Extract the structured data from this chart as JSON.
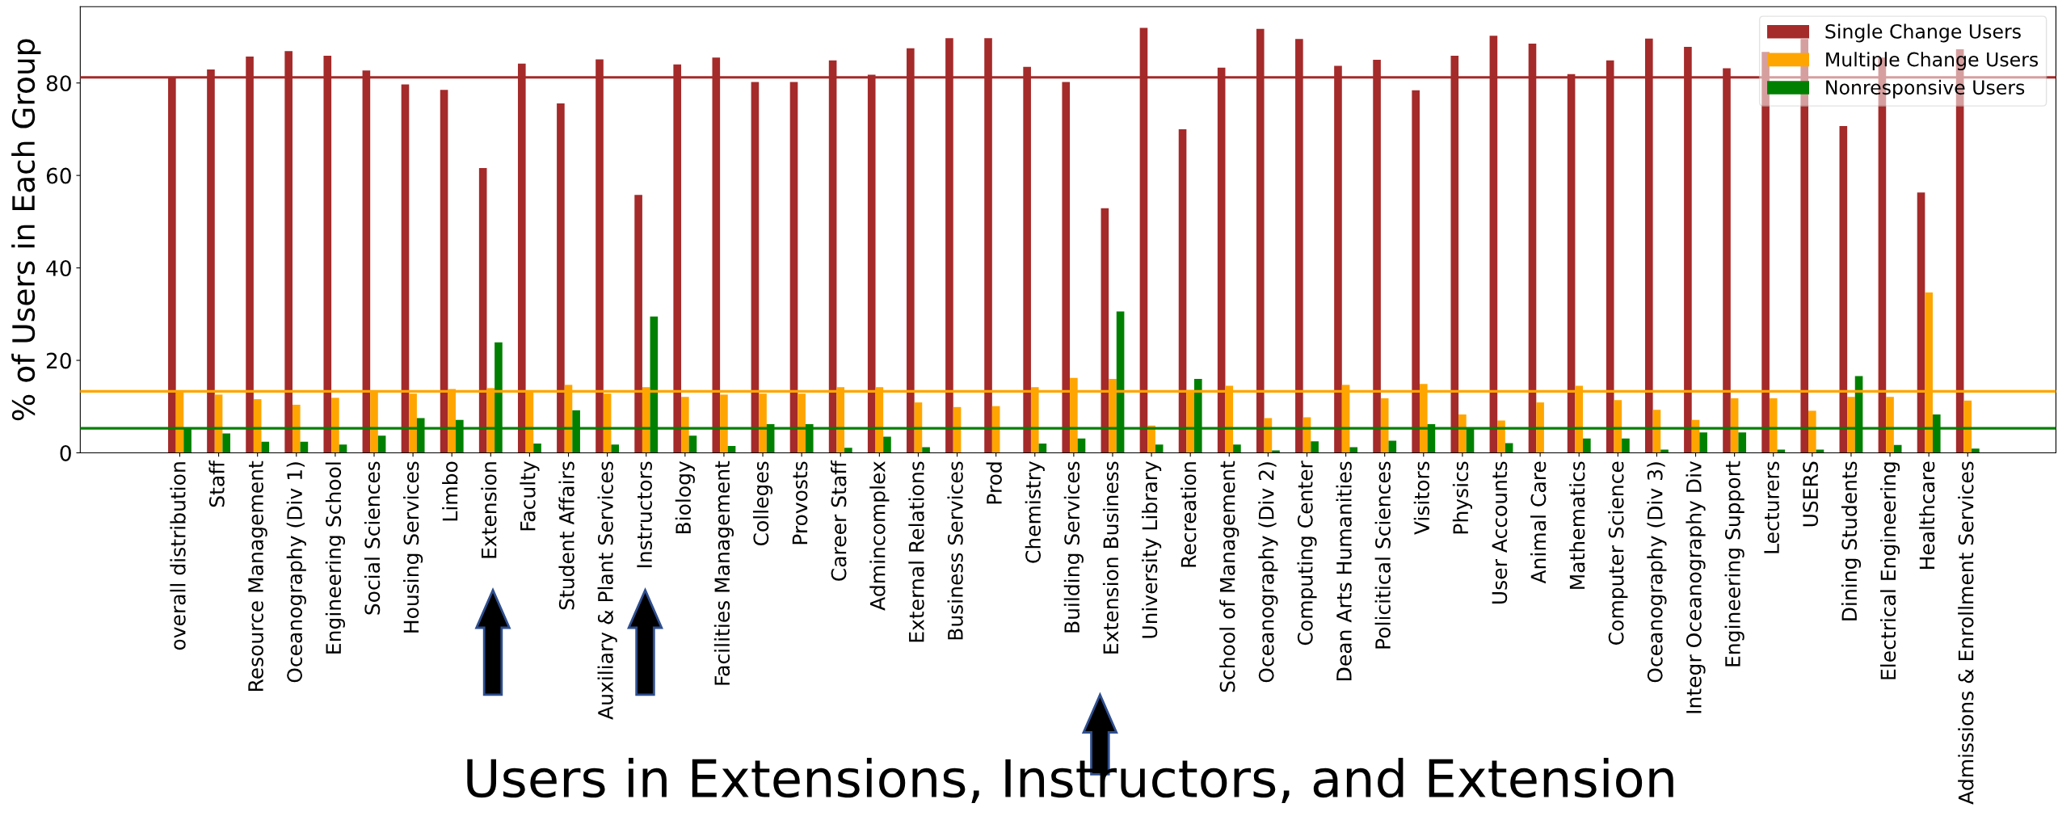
{
  "chart_data": {
    "type": "bar",
    "ylabel": "% of Users in Each Group",
    "categories": [
      "overall distribution",
      "Staff",
      "Resource Management",
      "Oceanography (Div 1)",
      "Engineering School",
      "Social Sciences",
      "Housing Services",
      "Limbo",
      "Extension",
      "Faculty",
      "Student Affairs",
      "Auxiliary & Plant Services",
      "Instructors",
      "Biology",
      "Facilities Management",
      "Colleges",
      "Provosts",
      "Career Staff",
      "Admincomplex",
      "External Relations",
      "Business Services",
      "Prod",
      "Chemistry",
      "Building Services",
      "Extension Business",
      "University Library",
      "Recreation",
      "School of Management",
      "Oceanography (Div 2)",
      "Computing Center",
      "Dean Arts Humanities",
      "Policitical Sciences",
      "Visitors",
      "Physics",
      "User Accounts",
      "Animal Care",
      "Mathematics",
      "Computer Science",
      "Oceanography (Div 3)",
      "Integr Oceanography Div",
      "Engineering Support",
      "Lecturers",
      "USERS",
      "Dining Students",
      "Electrical Engineering",
      "Healthcare",
      "Admissions & Enrollment Services"
    ],
    "series": [
      {
        "name": "Single Change Users",
        "color": "#a52a2a",
        "values": [
          81.3,
          82.9,
          85.7,
          86.9,
          85.9,
          82.7,
          79.7,
          78.5,
          61.6,
          84.2,
          75.6,
          85.1,
          55.8,
          84.0,
          85.5,
          80.2,
          80.2,
          84.9,
          81.8,
          87.5,
          89.7,
          89.7,
          83.5,
          80.2,
          52.9,
          91.9,
          70.0,
          83.3,
          91.7,
          89.5,
          83.7,
          85.0,
          78.4,
          85.9,
          90.2,
          88.5,
          81.9,
          84.9,
          89.6,
          87.8,
          83.2,
          86.7,
          89.5,
          70.7,
          85.5,
          56.3,
          87.3
        ]
      },
      {
        "name": "Multiple Change Users",
        "color": "#ffa500",
        "values": [
          13.2,
          12.6,
          11.6,
          10.4,
          11.9,
          13.2,
          12.8,
          13.8,
          14.0,
          13.2,
          14.7,
          12.8,
          14.2,
          12.1,
          12.6,
          12.8,
          12.8,
          14.2,
          14.2,
          10.9,
          9.9,
          10.1,
          14.2,
          16.2,
          16.0,
          5.9,
          13.6,
          14.5,
          7.5,
          7.7,
          14.7,
          11.8,
          14.9,
          8.3,
          7.0,
          10.9,
          14.5,
          11.4,
          9.3,
          7.1,
          11.8,
          11.8,
          9.1,
          12.1,
          12.1,
          34.7,
          11.3
        ]
      },
      {
        "name": "Nonresponsive Users",
        "color": "#008000",
        "values": [
          5.3,
          4.2,
          2.4,
          2.4,
          1.8,
          3.7,
          7.5,
          7.1,
          23.9,
          2.0,
          9.2,
          1.8,
          29.5,
          3.7,
          1.5,
          6.2,
          6.2,
          1.1,
          3.5,
          1.2,
          0,
          0,
          2.0,
          3.1,
          30.6,
          1.8,
          16.0,
          1.8,
          0.5,
          2.5,
          1.2,
          2.6,
          6.2,
          5.3,
          2.1,
          0,
          3.1,
          3.1,
          0.7,
          4.4,
          4.4,
          0.7,
          0.7,
          16.6,
          1.7,
          8.3,
          0.9
        ]
      }
    ],
    "ylim": [
      0,
      96.5
    ],
    "yticks": [
      0,
      20,
      40,
      60,
      80
    ],
    "ref_lines": [
      {
        "axis": "y",
        "value": 81.2,
        "label": null,
        "color": "#a52a2a"
      },
      {
        "axis": "y",
        "value": 13.3,
        "label": null,
        "color": "#ffa500"
      },
      {
        "axis": "y",
        "value": 5.3,
        "label": null,
        "color": "#008000"
      }
    ],
    "legend": "top right",
    "grid": false,
    "annotations": [
      "Users in Extensions, Instructors, and Extension"
    ]
  }
}
